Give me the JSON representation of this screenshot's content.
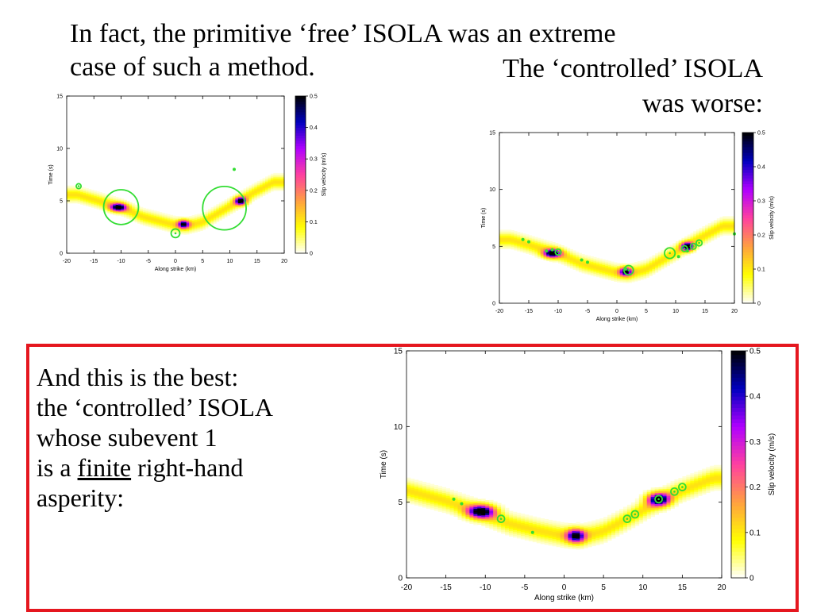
{
  "slide": {
    "intro_line1": "In fact, the primitive ‘free’ ISOLA was an extreme",
    "intro_line2": "case of such a method.",
    "controlled_line1": "The ‘controlled’ ISOLA",
    "controlled_line2": "was worse:",
    "best_line1": "And this is the best:",
    "best_line2": "the ‘controlled’ ISOLA",
    "best_line3": "whose subevent 1",
    "best_line4_prefix": "is a ",
    "best_line4_underlined": "finite",
    "best_line4_suffix": " right-hand",
    "best_line5": "asperity:",
    "frame_color": "#e5171f"
  },
  "chart_data": [
    {
      "id": "free",
      "type": "heatmap",
      "xlabel": "Along strike (km)",
      "ylabel": "Time (s)",
      "colorbar_label": "Slip velocity (m/s)",
      "xlim": [
        -20,
        20
      ],
      "ylim": [
        0,
        15
      ],
      "xticks": [
        "-20",
        "-15",
        "-10",
        "-5",
        "0",
        "5",
        "10",
        "15",
        "20"
      ],
      "yticks": [
        "0",
        "5",
        "10",
        "15"
      ],
      "cticks": [
        "0",
        "0.1",
        "0.2",
        "0.3",
        "0.4",
        "0.5"
      ],
      "clim": [
        0,
        0.5
      ],
      "colormap": [
        "#ffffff",
        "#ffff00",
        "#ffa040",
        "#ff40a0",
        "#b000ff",
        "#0000c0",
        "#000000"
      ],
      "rupture_front": [
        [
          -18,
          5.6
        ],
        [
          -14,
          5.0
        ],
        [
          -10,
          4.4
        ],
        [
          -6,
          3.5
        ],
        [
          -3,
          3.1
        ],
        [
          0,
          2.7
        ],
        [
          2,
          2.6
        ],
        [
          5,
          3.0
        ],
        [
          8,
          3.9
        ],
        [
          11,
          4.8
        ],
        [
          14,
          5.7
        ],
        [
          18,
          6.8
        ]
      ],
      "asperities": [
        {
          "x": -10.5,
          "y": 4.4,
          "peak": 0.5,
          "wx": 1.4,
          "wy": 0.35
        },
        {
          "x": 1.5,
          "y": 2.8,
          "peak": 0.45,
          "wx": 1.0,
          "wy": 0.35
        },
        {
          "x": 12,
          "y": 5.0,
          "peak": 0.5,
          "wx": 1.0,
          "wy": 0.35
        }
      ],
      "subevent_color": "#33dd33",
      "subevents": [
        {
          "x": -17.8,
          "y": 6.4,
          "r": 0.45,
          "kind": "ring"
        },
        {
          "x": -10,
          "y": 4.4,
          "r": 3.2,
          "kind": "ring"
        },
        {
          "x": 0,
          "y": 1.9,
          "r": 0.8,
          "kind": "ring"
        },
        {
          "x": 9,
          "y": 4.3,
          "r": 4.0,
          "kind": "ring"
        },
        {
          "x": 10.8,
          "y": 8.0,
          "r": 0.35,
          "kind": "dot"
        }
      ]
    },
    {
      "id": "controlled",
      "type": "heatmap",
      "xlabel": "Along strike (km)",
      "ylabel": "Time (s)",
      "colorbar_label": "Slip velocity (m/s)",
      "xlim": [
        -20,
        20
      ],
      "ylim": [
        0,
        15
      ],
      "xticks": [
        "-20",
        "-15",
        "-10",
        "-5",
        "0",
        "5",
        "10",
        "15",
        "20"
      ],
      "yticks": [
        "0",
        "5",
        "10",
        "15"
      ],
      "cticks": [
        "0",
        "0.1",
        "0.2",
        "0.3",
        "0.4",
        "0.5"
      ],
      "clim": [
        0,
        0.5
      ],
      "colormap": [
        "#ffffff",
        "#ffff00",
        "#ffa040",
        "#ff40a0",
        "#b000ff",
        "#0000c0",
        "#000000"
      ],
      "rupture_front": [
        [
          -18,
          5.6
        ],
        [
          -14,
          5.0
        ],
        [
          -10,
          4.4
        ],
        [
          -6,
          3.5
        ],
        [
          -3,
          3.1
        ],
        [
          0,
          2.7
        ],
        [
          2,
          2.6
        ],
        [
          5,
          3.0
        ],
        [
          8,
          3.9
        ],
        [
          11,
          4.8
        ],
        [
          14,
          5.7
        ],
        [
          18,
          6.8
        ]
      ],
      "asperities": [
        {
          "x": -11,
          "y": 4.4,
          "peak": 0.5,
          "wx": 1.4,
          "wy": 0.35
        },
        {
          "x": 1.5,
          "y": 2.8,
          "peak": 0.45,
          "wx": 1.0,
          "wy": 0.35
        },
        {
          "x": 12,
          "y": 5.0,
          "peak": 0.5,
          "wx": 1.0,
          "wy": 0.35
        }
      ],
      "subevent_color": "#33dd33",
      "subevents": [
        {
          "x": -16,
          "y": 5.6,
          "r": 0.3,
          "kind": "dot"
        },
        {
          "x": -15,
          "y": 5.4,
          "r": 0.3,
          "kind": "dot"
        },
        {
          "x": -12,
          "y": 4.6,
          "r": 0.3,
          "kind": "dot"
        },
        {
          "x": -11,
          "y": 4.7,
          "r": 0.3,
          "kind": "dot"
        },
        {
          "x": -10,
          "y": 4.5,
          "r": 0.5,
          "kind": "ring"
        },
        {
          "x": -6,
          "y": 3.8,
          "r": 0.3,
          "kind": "dot"
        },
        {
          "x": -5,
          "y": 3.6,
          "r": 0.3,
          "kind": "dot"
        },
        {
          "x": 1.5,
          "y": 3.0,
          "r": 0.3,
          "kind": "dot"
        },
        {
          "x": 2,
          "y": 2.9,
          "r": 0.8,
          "kind": "ring"
        },
        {
          "x": 9,
          "y": 4.4,
          "r": 0.9,
          "kind": "ring"
        },
        {
          "x": 10.5,
          "y": 4.1,
          "r": 0.3,
          "kind": "dot"
        },
        {
          "x": 11.5,
          "y": 4.8,
          "r": 0.5,
          "kind": "ring"
        },
        {
          "x": 12,
          "y": 4.6,
          "r": 0.3,
          "kind": "dot"
        },
        {
          "x": 13,
          "y": 5.0,
          "r": 0.5,
          "kind": "ring"
        },
        {
          "x": 14,
          "y": 5.3,
          "r": 0.5,
          "kind": "ring"
        },
        {
          "x": 20,
          "y": 6.1,
          "r": 0.3,
          "kind": "dot"
        }
      ]
    },
    {
      "id": "best",
      "type": "heatmap",
      "xlabel": "Along strike (km)",
      "ylabel": "Time (s)",
      "colorbar_label": "Slip velocity (m/s)",
      "xlim": [
        -20,
        20
      ],
      "ylim": [
        0,
        15
      ],
      "xticks": [
        "-20",
        "-15",
        "-10",
        "-5",
        "0",
        "5",
        "10",
        "15",
        "20"
      ],
      "yticks": [
        "0",
        "5",
        "10",
        "15"
      ],
      "cticks": [
        "0",
        "0.1",
        "0.2",
        "0.3",
        "0.4",
        "0.5"
      ],
      "clim": [
        0,
        0.5
      ],
      "colormap": [
        "#ffffff",
        "#ffff00",
        "#ffa040",
        "#ff40a0",
        "#b000ff",
        "#0000c0",
        "#000000"
      ],
      "rupture_front": [
        [
          -20,
          5.8
        ],
        [
          -15,
          5.1
        ],
        [
          -11,
          4.4
        ],
        [
          -7,
          3.6
        ],
        [
          -3,
          3.1
        ],
        [
          0,
          2.8
        ],
        [
          2,
          2.7
        ],
        [
          5,
          3.1
        ],
        [
          8,
          3.9
        ],
        [
          11,
          4.8
        ],
        [
          14,
          5.6
        ],
        [
          19,
          6.6
        ]
      ],
      "asperities": [
        {
          "x": -10.5,
          "y": 4.4,
          "peak": 0.5,
          "wx": 1.6,
          "wy": 0.4
        },
        {
          "x": 1.5,
          "y": 2.8,
          "peak": 0.45,
          "wx": 1.1,
          "wy": 0.4
        },
        {
          "x": 12,
          "y": 5.2,
          "peak": 0.5,
          "wx": 1.3,
          "wy": 0.4
        }
      ],
      "subevent_color": "#33dd33",
      "subevents": [
        {
          "x": -14,
          "y": 5.2,
          "r": 0.25,
          "kind": "dot"
        },
        {
          "x": -13,
          "y": 4.9,
          "r": 0.25,
          "kind": "dot"
        },
        {
          "x": -8,
          "y": 3.9,
          "r": 0.45,
          "kind": "ring"
        },
        {
          "x": -4,
          "y": 3.0,
          "r": 0.25,
          "kind": "dot"
        },
        {
          "x": 8,
          "y": 3.9,
          "r": 0.45,
          "kind": "ring"
        },
        {
          "x": 9,
          "y": 4.2,
          "r": 0.45,
          "kind": "ring"
        },
        {
          "x": 12,
          "y": 5.2,
          "r": 0.45,
          "kind": "ring"
        },
        {
          "x": 14,
          "y": 5.7,
          "r": 0.45,
          "kind": "ring"
        },
        {
          "x": 15,
          "y": 6.0,
          "r": 0.45,
          "kind": "ring"
        }
      ]
    }
  ]
}
